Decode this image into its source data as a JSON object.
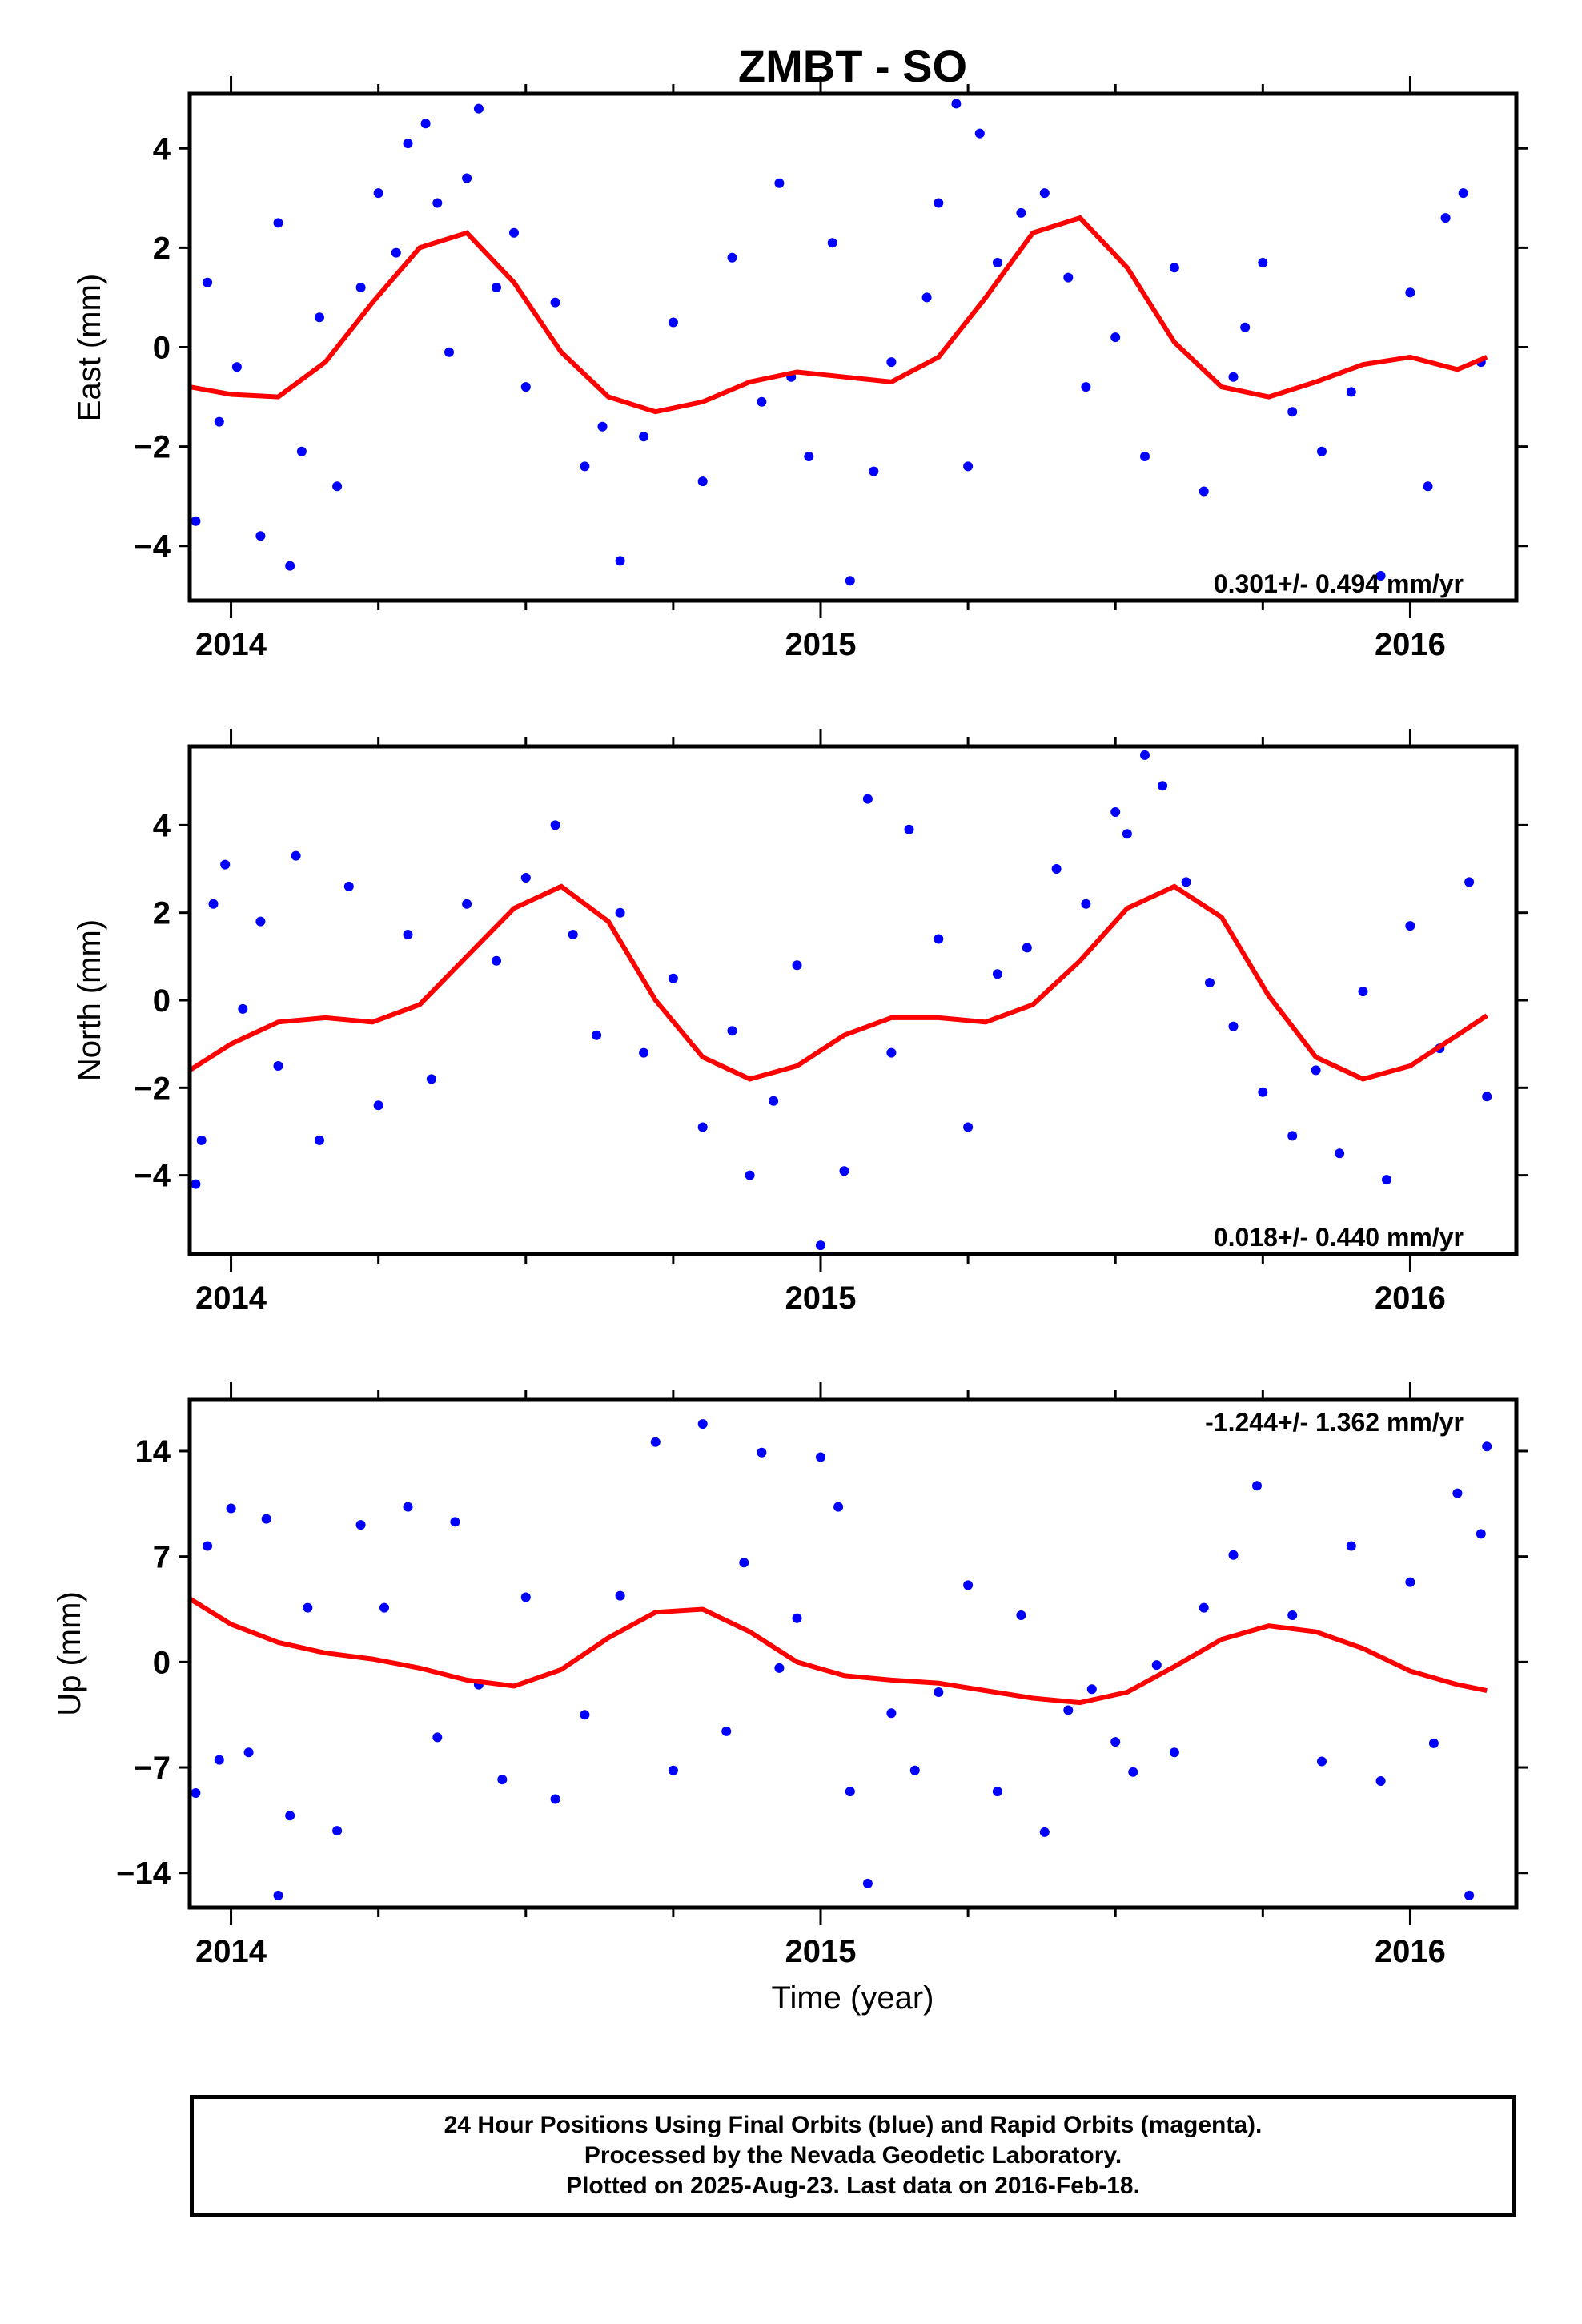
{
  "title": "ZMBT - SO",
  "xlabel": "Time (year)",
  "colors": {
    "data": "#0000ff",
    "fit": "#ff0000",
    "frame": "#000000"
  },
  "chart_data": [
    {
      "type": "scatter",
      "name": "east",
      "ylabel": "East (mm)",
      "ylim": [
        -5.1,
        5.1
      ],
      "yticks": [
        -4,
        -2,
        0,
        2,
        4
      ],
      "xlim": [
        2013.93,
        2016.18
      ],
      "xticks": [
        2014,
        2015,
        2016
      ],
      "rate_text": "0.301+/- 0.494 mm/yr",
      "rate_position": "bottom-right",
      "fit": {
        "x": [
          2013.93,
          2014.0,
          2014.08,
          2014.16,
          2014.24,
          2014.32,
          2014.4,
          2014.48,
          2014.56,
          2014.64,
          2014.72,
          2014.8,
          2014.88,
          2014.96,
          2015.04,
          2015.12,
          2015.2,
          2015.28,
          2015.36,
          2015.44,
          2015.52,
          2015.6,
          2015.68,
          2015.76,
          2015.84,
          2015.92,
          2016.0,
          2016.08,
          2016.13
        ],
        "y": [
          -0.8,
          -0.95,
          -1.0,
          -0.3,
          0.9,
          2.0,
          2.3,
          1.3,
          -0.1,
          -1.0,
          -1.3,
          -1.1,
          -0.7,
          -0.5,
          -0.6,
          -0.7,
          -0.2,
          1.0,
          2.3,
          2.6,
          1.6,
          0.1,
          -0.8,
          -1.0,
          -0.7,
          -0.35,
          -0.2,
          -0.45,
          -0.2
        ]
      },
      "points": {
        "x": [
          2013.94,
          2013.96,
          2013.98,
          2014.01,
          2014.05,
          2014.08,
          2014.1,
          2014.12,
          2014.15,
          2014.18,
          2014.22,
          2014.25,
          2014.28,
          2014.3,
          2014.33,
          2014.35,
          2014.37,
          2014.4,
          2014.42,
          2014.45,
          2014.48,
          2014.5,
          2014.55,
          2014.6,
          2014.63,
          2014.66,
          2014.7,
          2014.75,
          2014.8,
          2014.85,
          2014.9,
          2014.93,
          2014.95,
          2014.98,
          2015.02,
          2015.05,
          2015.09,
          2015.12,
          2015.18,
          2015.2,
          2015.23,
          2015.25,
          2015.27,
          2015.3,
          2015.34,
          2015.38,
          2015.42,
          2015.45,
          2015.5,
          2015.55,
          2015.6,
          2015.65,
          2015.7,
          2015.72,
          2015.75,
          2015.8,
          2015.85,
          2015.9,
          2015.95,
          2016.0,
          2016.03,
          2016.06,
          2016.09,
          2016.12
        ],
        "y": [
          -3.5,
          1.3,
          -1.5,
          -0.4,
          -3.8,
          2.5,
          -4.4,
          -2.1,
          0.6,
          -2.8,
          1.2,
          3.1,
          1.9,
          4.1,
          4.5,
          2.9,
          -0.1,
          3.4,
          4.8,
          1.2,
          2.3,
          -0.8,
          0.9,
          -2.4,
          -1.6,
          -4.3,
          -1.8,
          0.5,
          -2.7,
          1.8,
          -1.1,
          3.3,
          -0.6,
          -2.2,
          2.1,
          -4.7,
          -2.5,
          -0.3,
          1.0,
          2.9,
          4.9,
          -2.4,
          4.3,
          1.7,
          2.7,
          3.1,
          1.4,
          -0.8,
          0.2,
          -2.2,
          1.6,
          -2.9,
          -0.6,
          0.4,
          1.7,
          -1.3,
          -2.1,
          -0.9,
          -4.6,
          1.1,
          -2.8,
          2.6,
          3.1,
          -0.3
        ]
      }
    },
    {
      "type": "scatter",
      "name": "north",
      "ylabel": "North (mm)",
      "ylim": [
        -5.8,
        5.8
      ],
      "yticks": [
        -4,
        -2,
        0,
        2,
        4
      ],
      "xlim": [
        2013.93,
        2016.18
      ],
      "xticks": [
        2014,
        2015,
        2016
      ],
      "rate_text": "0.018+/- 0.440 mm/yr",
      "rate_position": "bottom-right",
      "fit": {
        "x": [
          2013.93,
          2014.0,
          2014.08,
          2014.16,
          2014.24,
          2014.32,
          2014.4,
          2014.48,
          2014.56,
          2014.64,
          2014.72,
          2014.8,
          2014.88,
          2014.96,
          2015.04,
          2015.12,
          2015.2,
          2015.28,
          2015.36,
          2015.44,
          2015.52,
          2015.6,
          2015.68,
          2015.76,
          2015.84,
          2015.92,
          2016.0,
          2016.08,
          2016.13
        ],
        "y": [
          -1.6,
          -1.0,
          -0.5,
          -0.4,
          -0.5,
          -0.1,
          1.0,
          2.1,
          2.6,
          1.8,
          0.0,
          -1.3,
          -1.8,
          -1.5,
          -0.8,
          -0.4,
          -0.4,
          -0.5,
          -0.1,
          0.9,
          2.1,
          2.6,
          1.9,
          0.1,
          -1.3,
          -1.8,
          -1.5,
          -0.8,
          -0.35
        ]
      },
      "points": {
        "x": [
          2013.94,
          2013.95,
          2013.97,
          2013.99,
          2014.02,
          2014.05,
          2014.08,
          2014.11,
          2014.15,
          2014.2,
          2014.25,
          2014.3,
          2014.34,
          2014.4,
          2014.45,
          2014.5,
          2014.55,
          2014.58,
          2014.62,
          2014.66,
          2014.7,
          2014.75,
          2014.8,
          2014.85,
          2014.88,
          2014.92,
          2014.96,
          2015.0,
          2015.04,
          2015.08,
          2015.12,
          2015.15,
          2015.2,
          2015.25,
          2015.3,
          2015.35,
          2015.4,
          2015.45,
          2015.5,
          2015.52,
          2015.55,
          2015.58,
          2015.62,
          2015.66,
          2015.7,
          2015.75,
          2015.8,
          2015.84,
          2015.88,
          2015.92,
          2015.96,
          2016.0,
          2016.05,
          2016.1,
          2016.13
        ],
        "y": [
          -4.2,
          -3.2,
          2.2,
          3.1,
          -0.2,
          1.8,
          -1.5,
          3.3,
          -3.2,
          2.6,
          -2.4,
          1.5,
          -1.8,
          2.2,
          0.9,
          2.8,
          4.0,
          1.5,
          -0.8,
          2.0,
          -1.2,
          0.5,
          -2.9,
          -0.7,
          -4.0,
          -2.3,
          0.8,
          -5.6,
          -3.9,
          4.6,
          -1.2,
          3.9,
          1.4,
          -2.9,
          0.6,
          1.2,
          3.0,
          2.2,
          4.3,
          3.8,
          5.6,
          4.9,
          2.7,
          0.4,
          -0.6,
          -2.1,
          -3.1,
          -1.6,
          -3.5,
          0.2,
          -4.1,
          1.7,
          -1.1,
          2.7,
          -2.2
        ]
      }
    },
    {
      "type": "scatter",
      "name": "up",
      "ylabel": "Up (mm)",
      "ylim": [
        -16.3,
        17.4
      ],
      "yticks": [
        -14,
        -7,
        0,
        7,
        14
      ],
      "xlim": [
        2013.93,
        2016.18
      ],
      "xticks": [
        2014,
        2015,
        2016
      ],
      "rate_text": "-1.244+/- 1.362 mm/yr",
      "rate_position": "top-right",
      "fit": {
        "x": [
          2013.93,
          2014.0,
          2014.08,
          2014.16,
          2014.24,
          2014.32,
          2014.4,
          2014.48,
          2014.56,
          2014.64,
          2014.72,
          2014.8,
          2014.88,
          2014.96,
          2015.04,
          2015.12,
          2015.2,
          2015.28,
          2015.36,
          2015.44,
          2015.52,
          2015.6,
          2015.68,
          2015.76,
          2015.84,
          2015.92,
          2016.0,
          2016.08,
          2016.13
        ],
        "y": [
          4.2,
          2.5,
          1.3,
          0.6,
          0.2,
          -0.4,
          -1.2,
          -1.6,
          -0.5,
          1.6,
          3.3,
          3.5,
          2.0,
          0.0,
          -0.9,
          -1.2,
          -1.4,
          -1.9,
          -2.4,
          -2.7,
          -2.0,
          -0.3,
          1.5,
          2.4,
          2.0,
          0.9,
          -0.6,
          -1.5,
          -1.9
        ]
      },
      "points": {
        "x": [
          2013.94,
          2013.96,
          2013.98,
          2014.0,
          2014.03,
          2014.06,
          2014.08,
          2014.1,
          2014.13,
          2014.18,
          2014.22,
          2014.26,
          2014.3,
          2014.35,
          2014.38,
          2014.42,
          2014.46,
          2014.5,
          2014.55,
          2014.6,
          2014.66,
          2014.72,
          2014.75,
          2014.8,
          2014.84,
          2014.87,
          2014.9,
          2014.93,
          2014.96,
          2015.0,
          2015.03,
          2015.05,
          2015.08,
          2015.12,
          2015.16,
          2015.2,
          2015.25,
          2015.3,
          2015.34,
          2015.38,
          2015.42,
          2015.46,
          2015.5,
          2015.53,
          2015.57,
          2015.6,
          2015.65,
          2015.7,
          2015.74,
          2015.8,
          2015.85,
          2015.9,
          2015.95,
          2016.0,
          2016.04,
          2016.08,
          2016.1,
          2016.12,
          2016.13
        ],
        "y": [
          -8.7,
          7.7,
          -6.5,
          10.2,
          -6.0,
          9.5,
          -15.5,
          -10.2,
          3.6,
          -11.2,
          9.1,
          3.6,
          10.3,
          -5.0,
          9.3,
          -1.5,
          -7.8,
          4.3,
          -9.1,
          -3.5,
          4.4,
          14.6,
          -7.2,
          15.8,
          -4.6,
          6.6,
          13.9,
          -0.4,
          2.9,
          13.6,
          10.3,
          -8.6,
          -14.7,
          -3.4,
          -7.2,
          -2.0,
          5.1,
          -8.6,
          3.1,
          -11.3,
          -3.2,
          -1.8,
          -5.3,
          -7.3,
          -0.2,
          -6.0,
          3.6,
          7.1,
          11.7,
          3.1,
          -6.6,
          7.7,
          -7.9,
          5.3,
          -5.4,
          11.2,
          -15.5,
          8.5,
          14.3
        ]
      }
    }
  ],
  "footer": {
    "line1": "24 Hour Positions Using Final Orbits (blue) and Rapid Orbits (magenta).",
    "line2": "Processed by the Nevada Geodetic Laboratory.",
    "line3": "Plotted on 2025-Aug-23. Last data on 2016-Feb-18."
  }
}
